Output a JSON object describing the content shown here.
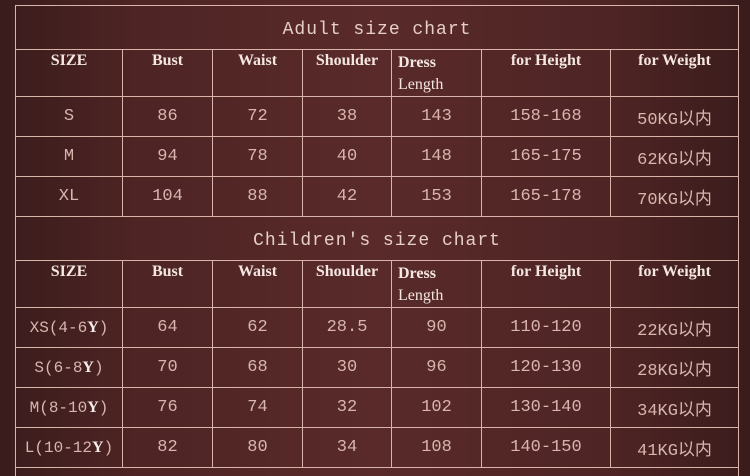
{
  "adult": {
    "title": "Adult size chart",
    "headers": [
      "SIZE",
      "Bust",
      "Waist",
      "Shoulder",
      "Dress",
      "Length",
      "for Height",
      "for Weight"
    ],
    "rows": [
      [
        "S",
        "86",
        "72",
        "38",
        "143",
        "158-168",
        "50KG以内"
      ],
      [
        "M",
        "94",
        "78",
        "40",
        "148",
        "165-175",
        "62KG以内"
      ],
      [
        "XL",
        "104",
        "88",
        "42",
        "153",
        "165-178",
        "70KG以内"
      ]
    ]
  },
  "children": {
    "title": "Children's size chart",
    "headers": [
      "SIZE",
      "Bust",
      "Waist",
      "Shoulder",
      "Dress",
      "Length",
      "for Height",
      "for Weight"
    ],
    "rows": [
      {
        "size": "XS(4-6",
        "unit": "Y",
        ")": ")",
        "vals": [
          "64",
          "62",
          "28.5",
          "90",
          "110-120",
          "22KG以内"
        ]
      },
      {
        "size": "S(6-8",
        "unit": "Y",
        ")": ")",
        "vals": [
          "70",
          "68",
          "30",
          "96",
          "120-130",
          "28KG以内"
        ]
      },
      {
        "size": "M(8-10",
        "unit": "Y",
        ")": ")",
        "vals": [
          "76",
          "74",
          "32",
          "102",
          "130-140",
          "34KG以内"
        ]
      },
      {
        "size": "L(10-12",
        "unit": "Y",
        ")": ")",
        "vals": [
          "82",
          "80",
          "34",
          "108",
          "140-150",
          "41KG以内"
        ]
      }
    ]
  },
  "colors": {
    "background": "#4e2424",
    "grid": "#d9b4aa",
    "text": "#d8b6ae"
  }
}
